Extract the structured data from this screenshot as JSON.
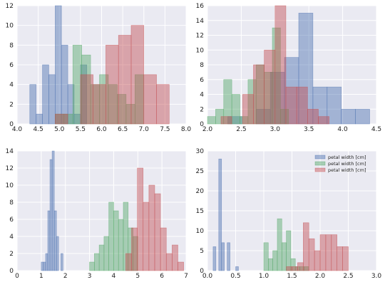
{
  "colors": {
    "background": "#eaeaf2",
    "grid": "#ffffff",
    "blue": "#4c72b0",
    "green": "#55a868",
    "red": "#c44e52"
  },
  "chart_data": [
    {
      "type": "histogram",
      "xlim": [
        4.0,
        8.0
      ],
      "ylim": [
        0,
        12
      ],
      "xticks": [
        "4.0",
        "4.5",
        "5.0",
        "5.5",
        "6.0",
        "6.5",
        "7.0",
        "7.5",
        "8.0"
      ],
      "yticks": [
        "0",
        "2",
        "4",
        "6",
        "8",
        "10",
        "12"
      ],
      "series": [
        {
          "color": "#4c72b0",
          "bins": [
            4.3,
            4.45,
            4.6,
            4.75,
            4.9,
            5.05,
            5.2,
            5.35,
            5.5,
            5.65,
            5.8
          ],
          "counts": [
            4,
            1,
            6,
            5,
            12,
            8,
            4,
            1,
            6,
            0,
            0
          ]
        },
        {
          "color": "#55a868",
          "bins": [
            4.9,
            5.11,
            5.32,
            5.53,
            5.74,
            5.95,
            6.16,
            6.37,
            6.58,
            6.79,
            7.0
          ],
          "counts": [
            1,
            1,
            8,
            7,
            4,
            5,
            4,
            3,
            2,
            5,
            0
          ]
        },
        {
          "color": "#c44e52",
          "bins": [
            4.9,
            5.2,
            5.5,
            5.8,
            6.1,
            6.4,
            6.7,
            7.0,
            7.3,
            7.6,
            7.9
          ],
          "counts": [
            1,
            0,
            5,
            4,
            8,
            9,
            10,
            5,
            4,
            0,
            4
          ]
        }
      ]
    },
    {
      "type": "histogram",
      "xlim": [
        2.0,
        4.5
      ],
      "ylim": [
        0,
        16
      ],
      "xticks": [
        "2.0",
        "2.5",
        "3.0",
        "3.5",
        "4.0",
        "4.5"
      ],
      "yticks": [
        "0",
        "2",
        "4",
        "6",
        "8",
        "10",
        "12",
        "14",
        "16"
      ],
      "series": [
        {
          "color": "#4c72b0",
          "bins": [
            2.3,
            2.51,
            2.72,
            2.93,
            3.14,
            3.35,
            3.56,
            3.77,
            3.98,
            4.19,
            4.4
          ],
          "counts": [
            1,
            0,
            2,
            7,
            9,
            15,
            5,
            5,
            2,
            2,
            0
          ]
        },
        {
          "color": "#55a868",
          "bins": [
            2.0,
            2.12,
            2.24,
            2.36,
            2.48,
            2.6,
            2.72,
            2.84,
            2.96,
            3.08,
            3.2
          ],
          "counts": [
            1,
            2,
            6,
            4,
            1,
            6,
            8,
            7,
            13,
            2,
            2
          ]
        },
        {
          "color": "#c44e52",
          "bins": [
            2.2,
            2.36,
            2.52,
            2.68,
            2.84,
            3.0,
            3.16,
            3.32,
            3.48,
            3.64,
            3.8
          ],
          "counts": [
            1,
            0,
            4,
            8,
            10,
            16,
            5,
            5,
            2,
            1,
            0
          ]
        }
      ]
    },
    {
      "type": "histogram",
      "xlim": [
        0,
        7
      ],
      "ylim": [
        0,
        14
      ],
      "xticks": [
        "0",
        "1",
        "2",
        "3",
        "4",
        "5",
        "6",
        "7"
      ],
      "yticks": [
        "0",
        "2",
        "4",
        "6",
        "8",
        "10",
        "12",
        "14"
      ],
      "series": [
        {
          "color": "#4c72b0",
          "bins": [
            1.0,
            1.09,
            1.18,
            1.27,
            1.36,
            1.45,
            1.54,
            1.63,
            1.72,
            1.81,
            1.9
          ],
          "counts": [
            1,
            1,
            2,
            7,
            13,
            14,
            7,
            4,
            0,
            2,
            0
          ]
        },
        {
          "color": "#55a868",
          "bins": [
            3.0,
            3.2,
            3.4,
            3.6,
            3.8,
            4.0,
            4.2,
            4.4,
            4.6,
            4.8,
            5.0
          ],
          "counts": [
            1,
            2,
            3,
            4,
            8,
            7,
            6,
            8,
            5,
            4,
            2
          ]
        },
        {
          "color": "#c44e52",
          "bins": [
            4.5,
            4.74,
            4.98,
            5.22,
            5.46,
            5.7,
            5.94,
            6.18,
            6.42,
            6.66,
            6.9
          ],
          "counts": [
            2,
            5,
            12,
            8,
            10,
            9,
            5,
            2,
            3,
            1,
            4
          ]
        }
      ]
    },
    {
      "type": "histogram",
      "xlim": [
        0.0,
        3.0
      ],
      "ylim": [
        0,
        30
      ],
      "xticks": [
        "0.0",
        "0.5",
        "1.0",
        "1.5",
        "2.0",
        "2.5",
        "3.0"
      ],
      "yticks": [
        "0",
        "5",
        "10",
        "15",
        "20",
        "25",
        "30"
      ],
      "legend": {
        "position": "top-right",
        "labels": [
          "petal width [cm]",
          "petal width [cm]",
          "petal width [cm]"
        ]
      },
      "series": [
        {
          "color": "#4c72b0",
          "bins": [
            0.1,
            0.15,
            0.2,
            0.25,
            0.3,
            0.35,
            0.4,
            0.45,
            0.5,
            0.55,
            0.6
          ],
          "counts": [
            6,
            0,
            28,
            7,
            0,
            7,
            0,
            0,
            1,
            0,
            0
          ]
        },
        {
          "color": "#55a868",
          "bins": [
            1.0,
            1.08,
            1.16,
            1.24,
            1.32,
            1.4,
            1.48,
            1.56,
            1.64,
            1.72,
            1.8
          ],
          "counts": [
            7,
            3,
            5,
            13,
            7,
            10,
            3,
            1,
            1,
            1,
            0
          ]
        },
        {
          "color": "#c44e52",
          "bins": [
            1.4,
            1.5,
            1.6,
            1.7,
            1.8,
            1.9,
            2.0,
            2.1,
            2.2,
            2.3,
            2.4,
            2.5
          ],
          "counts": [
            1,
            1,
            2,
            12,
            8,
            5,
            9,
            9,
            9,
            6,
            6
          ]
        }
      ]
    }
  ]
}
